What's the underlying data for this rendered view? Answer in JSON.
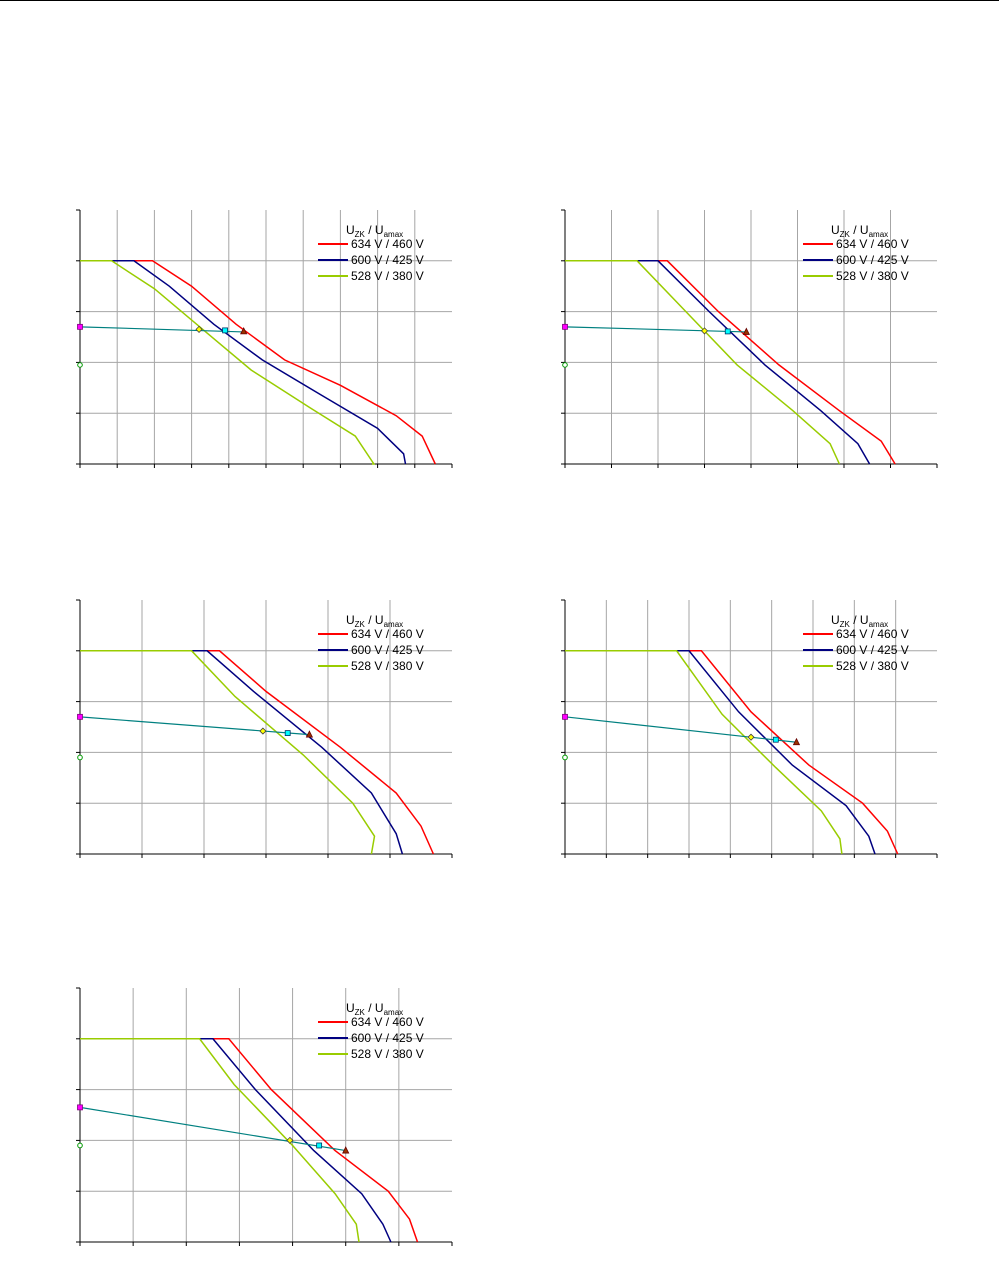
{
  "legend": {
    "title_main": "U",
    "title_sub1": "ZK",
    "title_sep": "/",
    "title_main2": "U",
    "title_sub2": "amax",
    "entries": [
      "634 V / 460 V",
      "600 V / 425 V",
      "528 V / 380 V"
    ]
  },
  "colors": {
    "s634": "#ff0000",
    "s600": "#000080",
    "s528": "#99cc00",
    "load": "#008080",
    "grid": "#a6a6a6",
    "axis": "#000000",
    "start_marker": "#ff00ff",
    "ref_marker": "#00ff00"
  },
  "chart_data": [
    {
      "type": "line",
      "x_ticks": 10,
      "y_ticks": 5,
      "xlim": [
        0,
        10
      ],
      "ylim": [
        0,
        5
      ],
      "grid": true,
      "legend_position": "top-right",
      "series": [
        {
          "name": "634 V / 460 V",
          "color": "#ff0000",
          "x": [
            0,
            1.95,
            3.0,
            4.2,
            5.5,
            7.0,
            8.5,
            9.2,
            9.55
          ],
          "y": [
            4.0,
            4.0,
            3.5,
            2.75,
            2.05,
            1.55,
            0.95,
            0.55,
            0.0
          ]
        },
        {
          "name": "600 V / 425 V",
          "color": "#000080",
          "x": [
            0,
            1.45,
            2.4,
            3.6,
            4.9,
            6.5,
            8.0,
            8.7,
            8.75
          ],
          "y": [
            4.0,
            4.0,
            3.5,
            2.75,
            2.05,
            1.35,
            0.7,
            0.2,
            0.0
          ]
        },
        {
          "name": "528 V / 380 V",
          "color": "#99cc00",
          "x": [
            0,
            0.85,
            2.0,
            3.3,
            4.6,
            6.2,
            7.4,
            7.9,
            7.85
          ],
          "y": [
            4.0,
            4.0,
            3.45,
            2.65,
            1.85,
            1.1,
            0.55,
            0.0,
            0.0
          ]
        }
      ],
      "load_line": {
        "x": [
          0,
          4.4
        ],
        "y": [
          2.7,
          2.6
        ]
      },
      "operating_points": [
        [
          3.2,
          2.65
        ],
        [
          3.9,
          2.63
        ],
        [
          4.4,
          2.61
        ]
      ],
      "ref_point": [
        0,
        1.95
      ]
    },
    {
      "type": "line",
      "x_ticks": 8,
      "y_ticks": 5,
      "xlim": [
        0,
        8
      ],
      "ylim": [
        0,
        5
      ],
      "grid": true,
      "legend_position": "top-right",
      "series": [
        {
          "name": "634 V / 460 V",
          "color": "#ff0000",
          "x": [
            0,
            2.2,
            3.3,
            4.6,
            5.9,
            6.8,
            7.1
          ],
          "y": [
            4.0,
            4.0,
            3.0,
            1.95,
            1.05,
            0.45,
            0.0
          ]
        },
        {
          "name": "600 V / 425 V",
          "color": "#000080",
          "x": [
            0,
            2.0,
            3.1,
            4.3,
            5.5,
            6.3,
            6.55
          ],
          "y": [
            4.0,
            4.0,
            3.0,
            1.95,
            1.05,
            0.4,
            0.0
          ]
        },
        {
          "name": "528 V / 380 V",
          "color": "#99cc00",
          "x": [
            0,
            1.55,
            2.6,
            3.7,
            4.9,
            5.7,
            5.9
          ],
          "y": [
            4.0,
            4.0,
            3.0,
            1.95,
            1.05,
            0.4,
            0.0
          ]
        }
      ],
      "load_line": {
        "x": [
          0,
          3.9
        ],
        "y": [
          2.7,
          2.6
        ]
      },
      "operating_points": [
        [
          3.0,
          2.62
        ],
        [
          3.5,
          2.61
        ],
        [
          3.9,
          2.6
        ]
      ],
      "ref_point": [
        0,
        1.95
      ]
    },
    {
      "type": "line",
      "x_ticks": 6,
      "y_ticks": 5,
      "xlim": [
        0,
        6
      ],
      "ylim": [
        0,
        5
      ],
      "grid": true,
      "legend_position": "top-right",
      "series": [
        {
          "name": "634 V / 460 V",
          "color": "#ff0000",
          "x": [
            0,
            2.25,
            3.0,
            4.2,
            5.1,
            5.5,
            5.7
          ],
          "y": [
            4.0,
            4.0,
            3.2,
            2.1,
            1.2,
            0.55,
            0.0
          ]
        },
        {
          "name": "600 V / 425 V",
          "color": "#000080",
          "x": [
            0,
            2.05,
            2.8,
            3.9,
            4.7,
            5.1,
            5.2
          ],
          "y": [
            4.0,
            4.0,
            3.2,
            2.1,
            1.2,
            0.4,
            0.0
          ]
        },
        {
          "name": "528 V / 380 V",
          "color": "#99cc00",
          "x": [
            0,
            1.8,
            2.5,
            3.6,
            4.4,
            4.75,
            4.7
          ],
          "y": [
            4.0,
            4.0,
            3.1,
            1.95,
            1.0,
            0.35,
            0.0
          ]
        }
      ],
      "load_line": {
        "x": [
          0,
          3.7
        ],
        "y": [
          2.7,
          2.35
        ]
      },
      "operating_points": [
        [
          2.95,
          2.42
        ],
        [
          3.35,
          2.38
        ],
        [
          3.7,
          2.35
        ]
      ],
      "ref_point": [
        0,
        1.9
      ]
    },
    {
      "type": "line",
      "x_ticks": 9,
      "y_ticks": 5,
      "xlim": [
        0,
        9
      ],
      "ylim": [
        0,
        5
      ],
      "grid": true,
      "legend_position": "top-right",
      "series": [
        {
          "name": "634 V / 460 V",
          "color": "#ff0000",
          "x": [
            0,
            3.3,
            4.5,
            5.9,
            7.2,
            7.8,
            8.05
          ],
          "y": [
            4.0,
            4.0,
            2.8,
            1.75,
            1.0,
            0.45,
            0.0
          ]
        },
        {
          "name": "600 V / 425 V",
          "color": "#000080",
          "x": [
            0,
            3.0,
            4.2,
            5.5,
            6.8,
            7.35,
            7.5
          ],
          "y": [
            4.0,
            4.0,
            2.8,
            1.75,
            0.95,
            0.35,
            0.0
          ]
        },
        {
          "name": "528 V / 380 V",
          "color": "#99cc00",
          "x": [
            0,
            2.7,
            3.8,
            5.1,
            6.2,
            6.65,
            6.7
          ],
          "y": [
            4.0,
            4.0,
            2.75,
            1.7,
            0.85,
            0.3,
            0.0
          ]
        }
      ],
      "load_line": {
        "x": [
          0,
          5.6
        ],
        "y": [
          2.7,
          2.2
        ]
      },
      "operating_points": [
        [
          4.5,
          2.3
        ],
        [
          5.1,
          2.25
        ],
        [
          5.6,
          2.2
        ]
      ],
      "ref_point": [
        0,
        1.9
      ]
    },
    {
      "type": "line",
      "x_ticks": 7,
      "y_ticks": 5,
      "xlim": [
        0,
        7
      ],
      "ylim": [
        0,
        5
      ],
      "grid": true,
      "legend_position": "top-right",
      "series": [
        {
          "name": "634 V / 460 V",
          "color": "#ff0000",
          "x": [
            0,
            2.8,
            3.6,
            4.8,
            5.8,
            6.2,
            6.35
          ],
          "y": [
            4.0,
            4.0,
            3.0,
            1.8,
            1.0,
            0.45,
            0.0
          ]
        },
        {
          "name": "600 V / 425 V",
          "color": "#000080",
          "x": [
            0,
            2.5,
            3.3,
            4.4,
            5.3,
            5.7,
            5.85
          ],
          "y": [
            4.0,
            4.0,
            3.0,
            1.8,
            0.95,
            0.35,
            0.0
          ]
        },
        {
          "name": "528 V / 380 V",
          "color": "#99cc00",
          "x": [
            0,
            2.25,
            2.9,
            4.0,
            4.8,
            5.2,
            5.25
          ],
          "y": [
            4.0,
            4.0,
            3.1,
            1.9,
            0.95,
            0.35,
            0.0
          ]
        }
      ],
      "load_line": {
        "x": [
          0,
          5.0
        ],
        "y": [
          2.65,
          1.8
        ]
      },
      "operating_points": [
        [
          3.95,
          2.0
        ],
        [
          4.5,
          1.9
        ],
        [
          5.0,
          1.8
        ]
      ],
      "ref_point": [
        0,
        1.9
      ]
    }
  ]
}
